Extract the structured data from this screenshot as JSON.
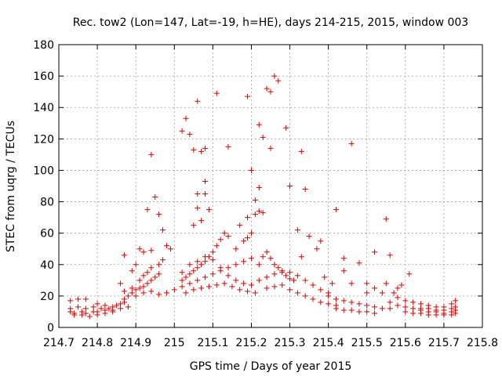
{
  "chart_data": {
    "type": "scatter",
    "title": "Rec. tow2 (Lon=147, Lat=-19, h=HE), days 214-215, 2015, window 003",
    "xlabel": "GPS time / Days of year 2015",
    "ylabel": "STEC from uqrg / TECUs",
    "xlim": [
      214.7,
      215.8
    ],
    "ylim": [
      0,
      180
    ],
    "xticks": [
      214.7,
      214.8,
      214.9,
      215,
      215.1,
      215.2,
      215.3,
      215.4,
      215.5,
      215.6,
      215.7,
      215.8
    ],
    "xtick_labels": [
      "214.7",
      "214.8",
      "214.9",
      "215",
      "215.1",
      "215.2",
      "215.3",
      "215.4",
      "215.5",
      "215.6",
      "215.7",
      "215.8"
    ],
    "yticks": [
      0,
      20,
      40,
      60,
      80,
      100,
      120,
      140,
      160,
      180
    ],
    "ytick_labels": [
      "0",
      "20",
      "40",
      "60",
      "80",
      "100",
      "120",
      "140",
      "160",
      "180"
    ],
    "grid": true,
    "marker": "+",
    "color": "#e00000",
    "points": [
      [
        214.73,
        17
      ],
      [
        214.75,
        18
      ],
      [
        214.77,
        18
      ],
      [
        214.8,
        15
      ],
      [
        214.82,
        14
      ],
      [
        214.84,
        13
      ],
      [
        214.73,
        12
      ],
      [
        214.75,
        13
      ],
      [
        214.77,
        12
      ],
      [
        214.79,
        13
      ],
      [
        214.81,
        12
      ],
      [
        214.83,
        12
      ],
      [
        214.85,
        14
      ],
      [
        214.87,
        16
      ],
      [
        214.73,
        10
      ],
      [
        214.74,
        9
      ],
      [
        214.76,
        10
      ],
      [
        214.77,
        9
      ],
      [
        214.79,
        10
      ],
      [
        214.8,
        10
      ],
      [
        214.82,
        11
      ],
      [
        214.84,
        11
      ],
      [
        214.86,
        12
      ],
      [
        214.88,
        13
      ],
      [
        214.74,
        8
      ],
      [
        214.76,
        8
      ],
      [
        214.78,
        7
      ],
      [
        214.8,
        8
      ],
      [
        214.82,
        9
      ],
      [
        214.84,
        10
      ],
      [
        214.86,
        15
      ],
      [
        214.87,
        18
      ],
      [
        214.88,
        20
      ],
      [
        214.89,
        22
      ],
      [
        214.9,
        24
      ],
      [
        214.91,
        25
      ],
      [
        214.92,
        26
      ],
      [
        214.93,
        28
      ],
      [
        214.94,
        30
      ],
      [
        214.95,
        32
      ],
      [
        214.96,
        34
      ],
      [
        214.87,
        23
      ],
      [
        214.89,
        25
      ],
      [
        214.91,
        30
      ],
      [
        214.92,
        33
      ],
      [
        214.93,
        35
      ],
      [
        214.94,
        38
      ],
      [
        214.96,
        40
      ],
      [
        214.97,
        43
      ],
      [
        214.86,
        28
      ],
      [
        214.87,
        46
      ],
      [
        214.89,
        36
      ],
      [
        214.9,
        40
      ],
      [
        214.91,
        50
      ],
      [
        214.92,
        48
      ],
      [
        214.93,
        75
      ],
      [
        214.94,
        49
      ],
      [
        214.95,
        83
      ],
      [
        214.96,
        72
      ],
      [
        214.97,
        62
      ],
      [
        214.98,
        52
      ],
      [
        214.99,
        50
      ],
      [
        214.94,
        110
      ],
      [
        214.9,
        20
      ],
      [
        214.92,
        22
      ],
      [
        214.94,
        23
      ],
      [
        214.96,
        21
      ],
      [
        214.98,
        22
      ],
      [
        215.0,
        24
      ],
      [
        215.02,
        125
      ],
      [
        215.03,
        133
      ],
      [
        215.04,
        123
      ],
      [
        215.06,
        144
      ],
      [
        215.05,
        113
      ],
      [
        215.07,
        112
      ],
      [
        215.08,
        114
      ],
      [
        215.11,
        149
      ],
      [
        215.14,
        115
      ],
      [
        215.08,
        93
      ],
      [
        215.06,
        85
      ],
      [
        215.08,
        85
      ],
      [
        215.06,
        76
      ],
      [
        215.09,
        75
      ],
      [
        215.05,
        65
      ],
      [
        215.07,
        68
      ],
      [
        215.02,
        30
      ],
      [
        215.03,
        32
      ],
      [
        215.04,
        34
      ],
      [
        215.05,
        36
      ],
      [
        215.06,
        38
      ],
      [
        215.07,
        40
      ],
      [
        215.08,
        42
      ],
      [
        215.09,
        45
      ],
      [
        215.1,
        48
      ],
      [
        215.11,
        52
      ],
      [
        215.12,
        56
      ],
      [
        215.13,
        60
      ],
      [
        215.14,
        58
      ],
      [
        215.02,
        26
      ],
      [
        215.04,
        28
      ],
      [
        215.06,
        30
      ],
      [
        215.08,
        32
      ],
      [
        215.1,
        34
      ],
      [
        215.12,
        36
      ],
      [
        215.14,
        38
      ],
      [
        215.16,
        40
      ],
      [
        215.18,
        42
      ],
      [
        215.2,
        44
      ],
      [
        215.02,
        35
      ],
      [
        215.04,
        40
      ],
      [
        215.06,
        42
      ],
      [
        215.08,
        45
      ],
      [
        215.1,
        43
      ],
      [
        215.12,
        38
      ],
      [
        215.14,
        33
      ],
      [
        215.16,
        30
      ],
      [
        215.18,
        28
      ],
      [
        215.2,
        27
      ],
      [
        215.03,
        22
      ],
      [
        215.05,
        24
      ],
      [
        215.07,
        25
      ],
      [
        215.09,
        26
      ],
      [
        215.11,
        27
      ],
      [
        215.13,
        28
      ],
      [
        215.15,
        26
      ],
      [
        215.17,
        24
      ],
      [
        215.19,
        23
      ],
      [
        215.21,
        22
      ],
      [
        215.16,
        50
      ],
      [
        215.18,
        55
      ],
      [
        215.19,
        57
      ],
      [
        215.2,
        60
      ],
      [
        215.17,
        65
      ],
      [
        215.19,
        70
      ],
      [
        215.21,
        72
      ],
      [
        215.22,
        74
      ],
      [
        215.23,
        73
      ],
      [
        215.19,
        147
      ],
      [
        215.2,
        100
      ],
      [
        215.21,
        81
      ],
      [
        215.22,
        89
      ],
      [
        215.22,
        129
      ],
      [
        215.23,
        121
      ],
      [
        215.24,
        152
      ],
      [
        215.25,
        150
      ],
      [
        215.26,
        160
      ],
      [
        215.27,
        157
      ],
      [
        215.25,
        114
      ],
      [
        215.29,
        127
      ],
      [
        215.3,
        90
      ],
      [
        215.22,
        40
      ],
      [
        215.23,
        45
      ],
      [
        215.24,
        48
      ],
      [
        215.25,
        44
      ],
      [
        215.26,
        40
      ],
      [
        215.27,
        38
      ],
      [
        215.28,
        35
      ],
      [
        215.29,
        33
      ],
      [
        215.3,
        31
      ],
      [
        215.31,
        30
      ],
      [
        215.22,
        30
      ],
      [
        215.24,
        32
      ],
      [
        215.26,
        34
      ],
      [
        215.28,
        36
      ],
      [
        215.3,
        35
      ],
      [
        215.32,
        33
      ],
      [
        215.34,
        30
      ],
      [
        215.36,
        27
      ],
      [
        215.38,
        24
      ],
      [
        215.4,
        22
      ],
      [
        215.24,
        25
      ],
      [
        215.26,
        26
      ],
      [
        215.28,
        27
      ],
      [
        215.3,
        24
      ],
      [
        215.32,
        22
      ],
      [
        215.34,
        20
      ],
      [
        215.36,
        18
      ],
      [
        215.38,
        16
      ],
      [
        215.4,
        15
      ],
      [
        215.42,
        14
      ],
      [
        215.32,
        62
      ],
      [
        215.33,
        112
      ],
      [
        215.34,
        88
      ],
      [
        215.33,
        45
      ],
      [
        215.35,
        58
      ],
      [
        215.37,
        50
      ],
      [
        215.38,
        55
      ],
      [
        215.39,
        32
      ],
      [
        215.41,
        28
      ],
      [
        215.42,
        75
      ],
      [
        215.44,
        44
      ],
      [
        215.44,
        36
      ],
      [
        215.46,
        117
      ],
      [
        215.46,
        28
      ],
      [
        215.48,
        41
      ],
      [
        215.5,
        28
      ],
      [
        215.52,
        48
      ],
      [
        215.4,
        20
      ],
      [
        215.42,
        18
      ],
      [
        215.44,
        17
      ],
      [
        215.46,
        16
      ],
      [
        215.48,
        15
      ],
      [
        215.5,
        14
      ],
      [
        215.52,
        13
      ],
      [
        215.54,
        12
      ],
      [
        215.56,
        12
      ],
      [
        215.42,
        12
      ],
      [
        215.44,
        11
      ],
      [
        215.46,
        11
      ],
      [
        215.48,
        10
      ],
      [
        215.5,
        10
      ],
      [
        215.52,
        9
      ],
      [
        215.5,
        22
      ],
      [
        215.52,
        25
      ],
      [
        215.54,
        22
      ],
      [
        215.55,
        69
      ],
      [
        215.56,
        46
      ],
      [
        215.55,
        28
      ],
      [
        215.57,
        22
      ],
      [
        215.58,
        25
      ],
      [
        215.59,
        27
      ],
      [
        215.61,
        34
      ],
      [
        215.56,
        16
      ],
      [
        215.58,
        14
      ],
      [
        215.6,
        13
      ],
      [
        215.62,
        12
      ],
      [
        215.64,
        11
      ],
      [
        215.66,
        10
      ],
      [
        215.68,
        10
      ],
      [
        215.7,
        9
      ],
      [
        215.58,
        19
      ],
      [
        215.6,
        17
      ],
      [
        215.62,
        16
      ],
      [
        215.64,
        15
      ],
      [
        215.66,
        14
      ],
      [
        215.68,
        13
      ],
      [
        215.7,
        13
      ],
      [
        215.72,
        12
      ],
      [
        215.6,
        10
      ],
      [
        215.62,
        9
      ],
      [
        215.64,
        9
      ],
      [
        215.66,
        8
      ],
      [
        215.68,
        8
      ],
      [
        215.7,
        8
      ],
      [
        215.72,
        8
      ],
      [
        215.73,
        9
      ],
      [
        215.64,
        12
      ],
      [
        215.66,
        12
      ],
      [
        215.68,
        11
      ],
      [
        215.7,
        11
      ],
      [
        215.72,
        10
      ],
      [
        215.73,
        11
      ],
      [
        215.73,
        13
      ],
      [
        215.72,
        15
      ],
      [
        215.73,
        17
      ]
    ]
  }
}
